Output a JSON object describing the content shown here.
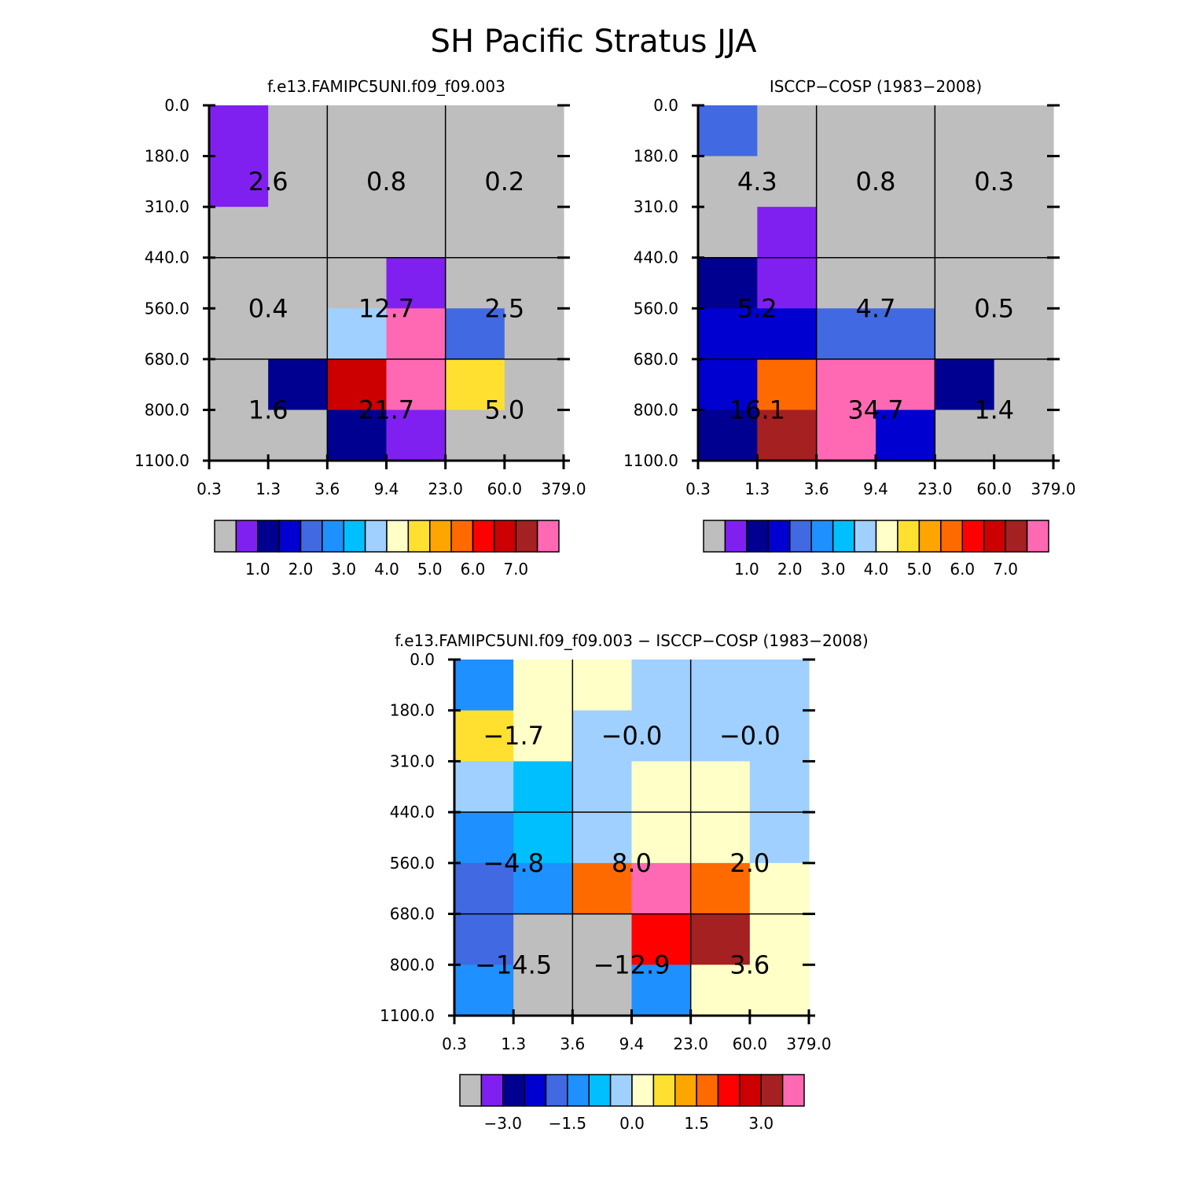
{
  "title": "SH Pacific Stratus JJA",
  "palette": [
    "#BEBEBE",
    "#8020F0",
    "#000090",
    "#0000D0",
    "#4169E1",
    "#1E90FF",
    "#00BFFF",
    "#A0D0FF",
    "#FFFFC8",
    "#FFE030",
    "#FFA500",
    "#FF6A00",
    "#FF0000",
    "#CC0000",
    "#A52020",
    "#FF69B4"
  ],
  "chart_data": [
    {
      "type": "heatmap",
      "title": "f.e13.FAMIPC5UNI.f09_f09.003",
      "x_tick_labels": [
        "0.3",
        "1.3",
        "3.6",
        "9.4",
        "23.0",
        "60.0",
        "379.0"
      ],
      "y_tick_labels": [
        "0.0",
        "180.0",
        "310.0",
        "440.0",
        "560.0",
        "680.0",
        "800.0",
        "1100.0"
      ],
      "color_index_grid": [
        [
          1,
          0,
          0,
          0,
          0,
          0
        ],
        [
          1,
          0,
          0,
          0,
          0,
          0
        ],
        [
          0,
          0,
          0,
          0,
          0,
          0
        ],
        [
          0,
          0,
          0,
          1,
          0,
          0
        ],
        [
          0,
          0,
          7,
          15,
          4,
          0
        ],
        [
          0,
          2,
          13,
          15,
          9,
          0
        ],
        [
          0,
          0,
          2,
          1,
          0,
          0
        ]
      ],
      "block_labels": [
        [
          "2.6",
          "0.8",
          "0.2"
        ],
        [
          "0.4",
          "12.7",
          "2.5"
        ],
        [
          "1.6",
          "21.7",
          "5.0"
        ]
      ],
      "colorbar": {
        "labels": [
          "1.0",
          "2.0",
          "3.0",
          "4.0",
          "5.0",
          "6.0",
          "7.0"
        ]
      }
    },
    {
      "type": "heatmap",
      "title": "ISCCP-COSP (1983-2008)",
      "x_tick_labels": [
        "0.3",
        "1.3",
        "3.6",
        "9.4",
        "23.0",
        "60.0",
        "379.0"
      ],
      "y_tick_labels": [
        "0.0",
        "180.0",
        "310.0",
        "440.0",
        "560.0",
        "680.0",
        "800.0",
        "1100.0"
      ],
      "color_index_grid": [
        [
          4,
          0,
          0,
          0,
          0,
          0
        ],
        [
          0,
          0,
          0,
          0,
          0,
          0
        ],
        [
          0,
          1,
          0,
          0,
          0,
          0
        ],
        [
          2,
          1,
          0,
          0,
          0,
          0
        ],
        [
          3,
          3,
          4,
          4,
          0,
          0
        ],
        [
          3,
          11,
          15,
          15,
          2,
          0
        ],
        [
          2,
          14,
          15,
          3,
          0,
          0
        ]
      ],
      "block_labels": [
        [
          "4.3",
          "0.8",
          "0.3"
        ],
        [
          "5.2",
          "4.7",
          "0.5"
        ],
        [
          "16.1",
          "34.7",
          "1.4"
        ]
      ],
      "colorbar": {
        "labels": [
          "1.0",
          "2.0",
          "3.0",
          "4.0",
          "5.0",
          "6.0",
          "7.0"
        ]
      }
    },
    {
      "type": "heatmap",
      "title": "f.e13.FAMIPC5UNI.f09_f09.003 - ISCCP-COSP (1983-2008)",
      "x_tick_labels": [
        "0.3",
        "1.3",
        "3.6",
        "9.4",
        "23.0",
        "60.0",
        "379.0"
      ],
      "y_tick_labels": [
        "0.0",
        "180.0",
        "310.0",
        "440.0",
        "560.0",
        "680.0",
        "800.0",
        "1100.0"
      ],
      "color_index_grid": [
        [
          5,
          8,
          8,
          7,
          7,
          7
        ],
        [
          9,
          8,
          7,
          7,
          7,
          7
        ],
        [
          7,
          6,
          7,
          8,
          8,
          7
        ],
        [
          5,
          6,
          7,
          8,
          8,
          7
        ],
        [
          4,
          5,
          11,
          15,
          11,
          8
        ],
        [
          4,
          0,
          0,
          12,
          14,
          8
        ],
        [
          5,
          0,
          0,
          5,
          8,
          8
        ]
      ],
      "block_labels": [
        [
          "-1.7",
          "-0.0",
          "-0.0"
        ],
        [
          "-4.8",
          "8.0",
          "2.0"
        ],
        [
          "-14.5",
          "-12.9",
          "3.6"
        ]
      ],
      "colorbar": {
        "labels": [
          "-3.0",
          "-1.5",
          "0.0",
          "1.5",
          "3.0"
        ]
      }
    }
  ]
}
